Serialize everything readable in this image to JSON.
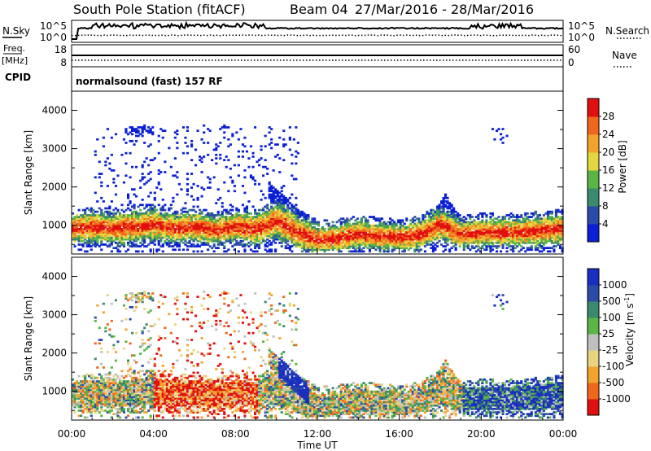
{
  "header": {
    "station": "South Pole Station (fitACF)",
    "beam": "Beam 04",
    "date_range": "27/Mar/2016 - 28/Mar/2016"
  },
  "top_panels": {
    "nsky_label": "N.Sky",
    "nsky_ticks": [
      "10^5",
      "10^0"
    ],
    "nsearch_label": "N.Search",
    "nsearch_ticks": [
      "10^5",
      "10^0"
    ],
    "freq_label": "Freq.",
    "freq_unit": "[MHz]",
    "freq_ticks": [
      "18",
      "8"
    ],
    "nave_label": "Nave",
    "nave_ticks": [
      "60",
      "0"
    ],
    "cpid_label": "CPID",
    "cpid_value": "normalsound (fast) 157 RF"
  },
  "colors": {
    "power_scale": [
      "#0a1fd6",
      "#2c4aa8",
      "#3a8a6e",
      "#5ab546",
      "#e3d640",
      "#f2a32c",
      "#f0661d",
      "#e01010"
    ],
    "velocity_scale": [
      "#e01010",
      "#f0661d",
      "#f2a32c",
      "#e8d480",
      "#bfbfbf",
      "#5ab546",
      "#3a8a6e",
      "#2c4aa8",
      "#1a2fc0"
    ]
  },
  "chart_data": [
    {
      "type": "heatmap",
      "name": "power",
      "xlabel": "",
      "ylabel": "Slant Range [km]",
      "ylim": [
        250,
        4500
      ],
      "y_ticks": [
        "1000",
        "2000",
        "3000",
        "4000"
      ],
      "y_tick_values": [
        1000,
        2000,
        3000,
        4000
      ],
      "colorbar_label": "Power [dB]",
      "colorbar_ticks": [
        "4",
        "8",
        "12",
        "16",
        "20",
        "24",
        "28"
      ],
      "colorbar_range": [
        0,
        32
      ],
      "main_band_km": [
        [
          0,
          900,
          300
        ],
        [
          1,
          950,
          320
        ],
        [
          2,
          900,
          320
        ],
        [
          3,
          950,
          350
        ],
        [
          4,
          1000,
          350
        ],
        [
          5,
          900,
          300
        ],
        [
          6,
          950,
          320
        ],
        [
          7,
          850,
          300
        ],
        [
          8,
          950,
          320
        ],
        [
          9,
          900,
          320
        ],
        [
          10,
          1100,
          420
        ],
        [
          11,
          800,
          400
        ],
        [
          12,
          600,
          300
        ],
        [
          13,
          650,
          300
        ],
        [
          14,
          750,
          300
        ],
        [
          15,
          700,
          280
        ],
        [
          16,
          650,
          280
        ],
        [
          17,
          750,
          300
        ],
        [
          18,
          1000,
          350
        ],
        [
          19,
          750,
          280
        ],
        [
          20,
          800,
          300
        ],
        [
          21,
          800,
          300
        ],
        [
          22,
          800,
          300
        ],
        [
          23,
          850,
          320
        ],
        [
          24,
          900,
          320
        ]
      ]
    },
    {
      "type": "heatmap",
      "name": "velocity",
      "xlabel": "Time UT",
      "ylabel": "Slant Range [km]",
      "ylim": [
        250,
        4500
      ],
      "y_ticks": [
        "1000",
        "2000",
        "3000",
        "4000"
      ],
      "y_tick_values": [
        1000,
        2000,
        3000,
        4000
      ],
      "x_ticks": [
        "00:00",
        "04:00",
        "08:00",
        "12:00",
        "16:00",
        "20:00",
        "00:00"
      ],
      "x_tick_hours": [
        0,
        4,
        8,
        12,
        16,
        20,
        24
      ],
      "colorbar_label": "Velocity [m s^-1]",
      "colorbar_ticks": [
        "1000",
        "500",
        "100",
        "25",
        "-25",
        "-100",
        "-500",
        "-1000"
      ]
    }
  ]
}
